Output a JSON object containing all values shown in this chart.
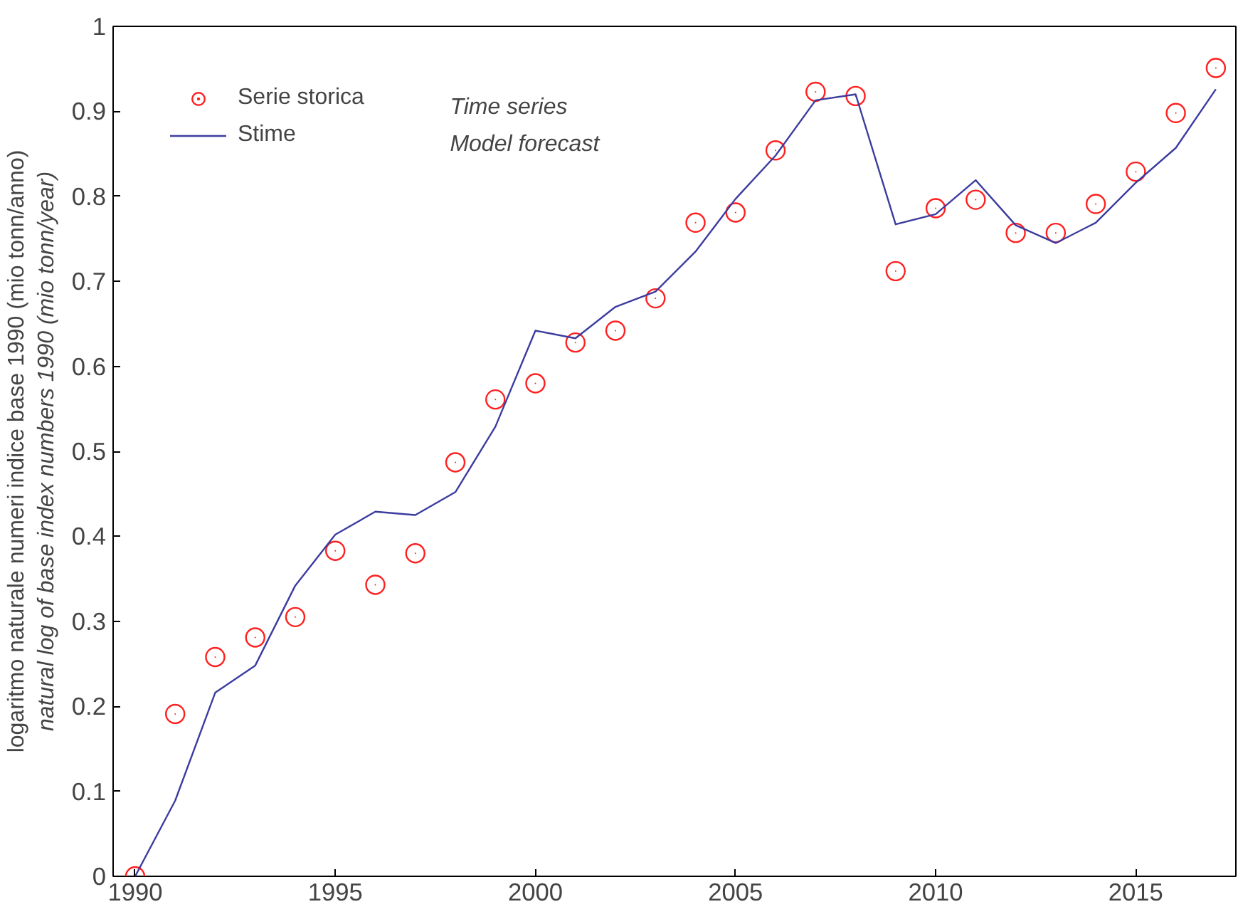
{
  "chart_data": {
    "type": "scatter",
    "ylabel": "natural log of base index numbers 1990 (mio tonn/year)\nlogaritmo naturale numeri indice base 1990 (mio tonn/anno)",
    "x": [
      1990,
      1991,
      1992,
      1993,
      1994,
      1995,
      1996,
      1997,
      1998,
      1999,
      2000,
      2001,
      2002,
      2003,
      2004,
      2005,
      2006,
      2007,
      2008,
      2009,
      2010,
      2011,
      2012,
      2013,
      2014,
      2015,
      2016,
      2017
    ],
    "series": [
      {
        "name": "Serie storica",
        "marker": "circle",
        "color": "#ff2020",
        "values": [
          0,
          0.191,
          0.258,
          0.281,
          0.305,
          0.383,
          0.343,
          0.38,
          0.487,
          0.561,
          0.58,
          0.628,
          0.642,
          0.68,
          0.769,
          0.781,
          0.854,
          0.923,
          0.918,
          0.712,
          0.786,
          0.796,
          0.757,
          0.757,
          0.791,
          0.829,
          0.898,
          0.951
        ]
      },
      {
        "name": "Stime",
        "type": "line",
        "marker": "none",
        "color": "#3c3ca0",
        "values": [
          0,
          0.089,
          0.216,
          0.248,
          0.342,
          0.402,
          0.429,
          0.425,
          0.452,
          0.529,
          0.642,
          0.633,
          0.67,
          0.688,
          0.735,
          0.797,
          0.848,
          0.913,
          0.92,
          0.767,
          0.779,
          0.819,
          0.766,
          0.745,
          0.769,
          0.816,
          0.857,
          0.926
        ]
      }
    ],
    "annotations": [
      "Time series",
      "Model forecast"
    ],
    "legend": "top left",
    "xlim": [
      1989.45,
      2017.5
    ],
    "ylim": [
      0,
      1
    ],
    "xticks": [
      1990,
      1995,
      2000,
      2005,
      2010,
      2015
    ],
    "yticks": [
      0,
      0.1,
      0.2,
      0.3,
      0.4,
      0.5,
      0.6,
      0.7,
      0.8,
      0.9,
      1
    ]
  }
}
